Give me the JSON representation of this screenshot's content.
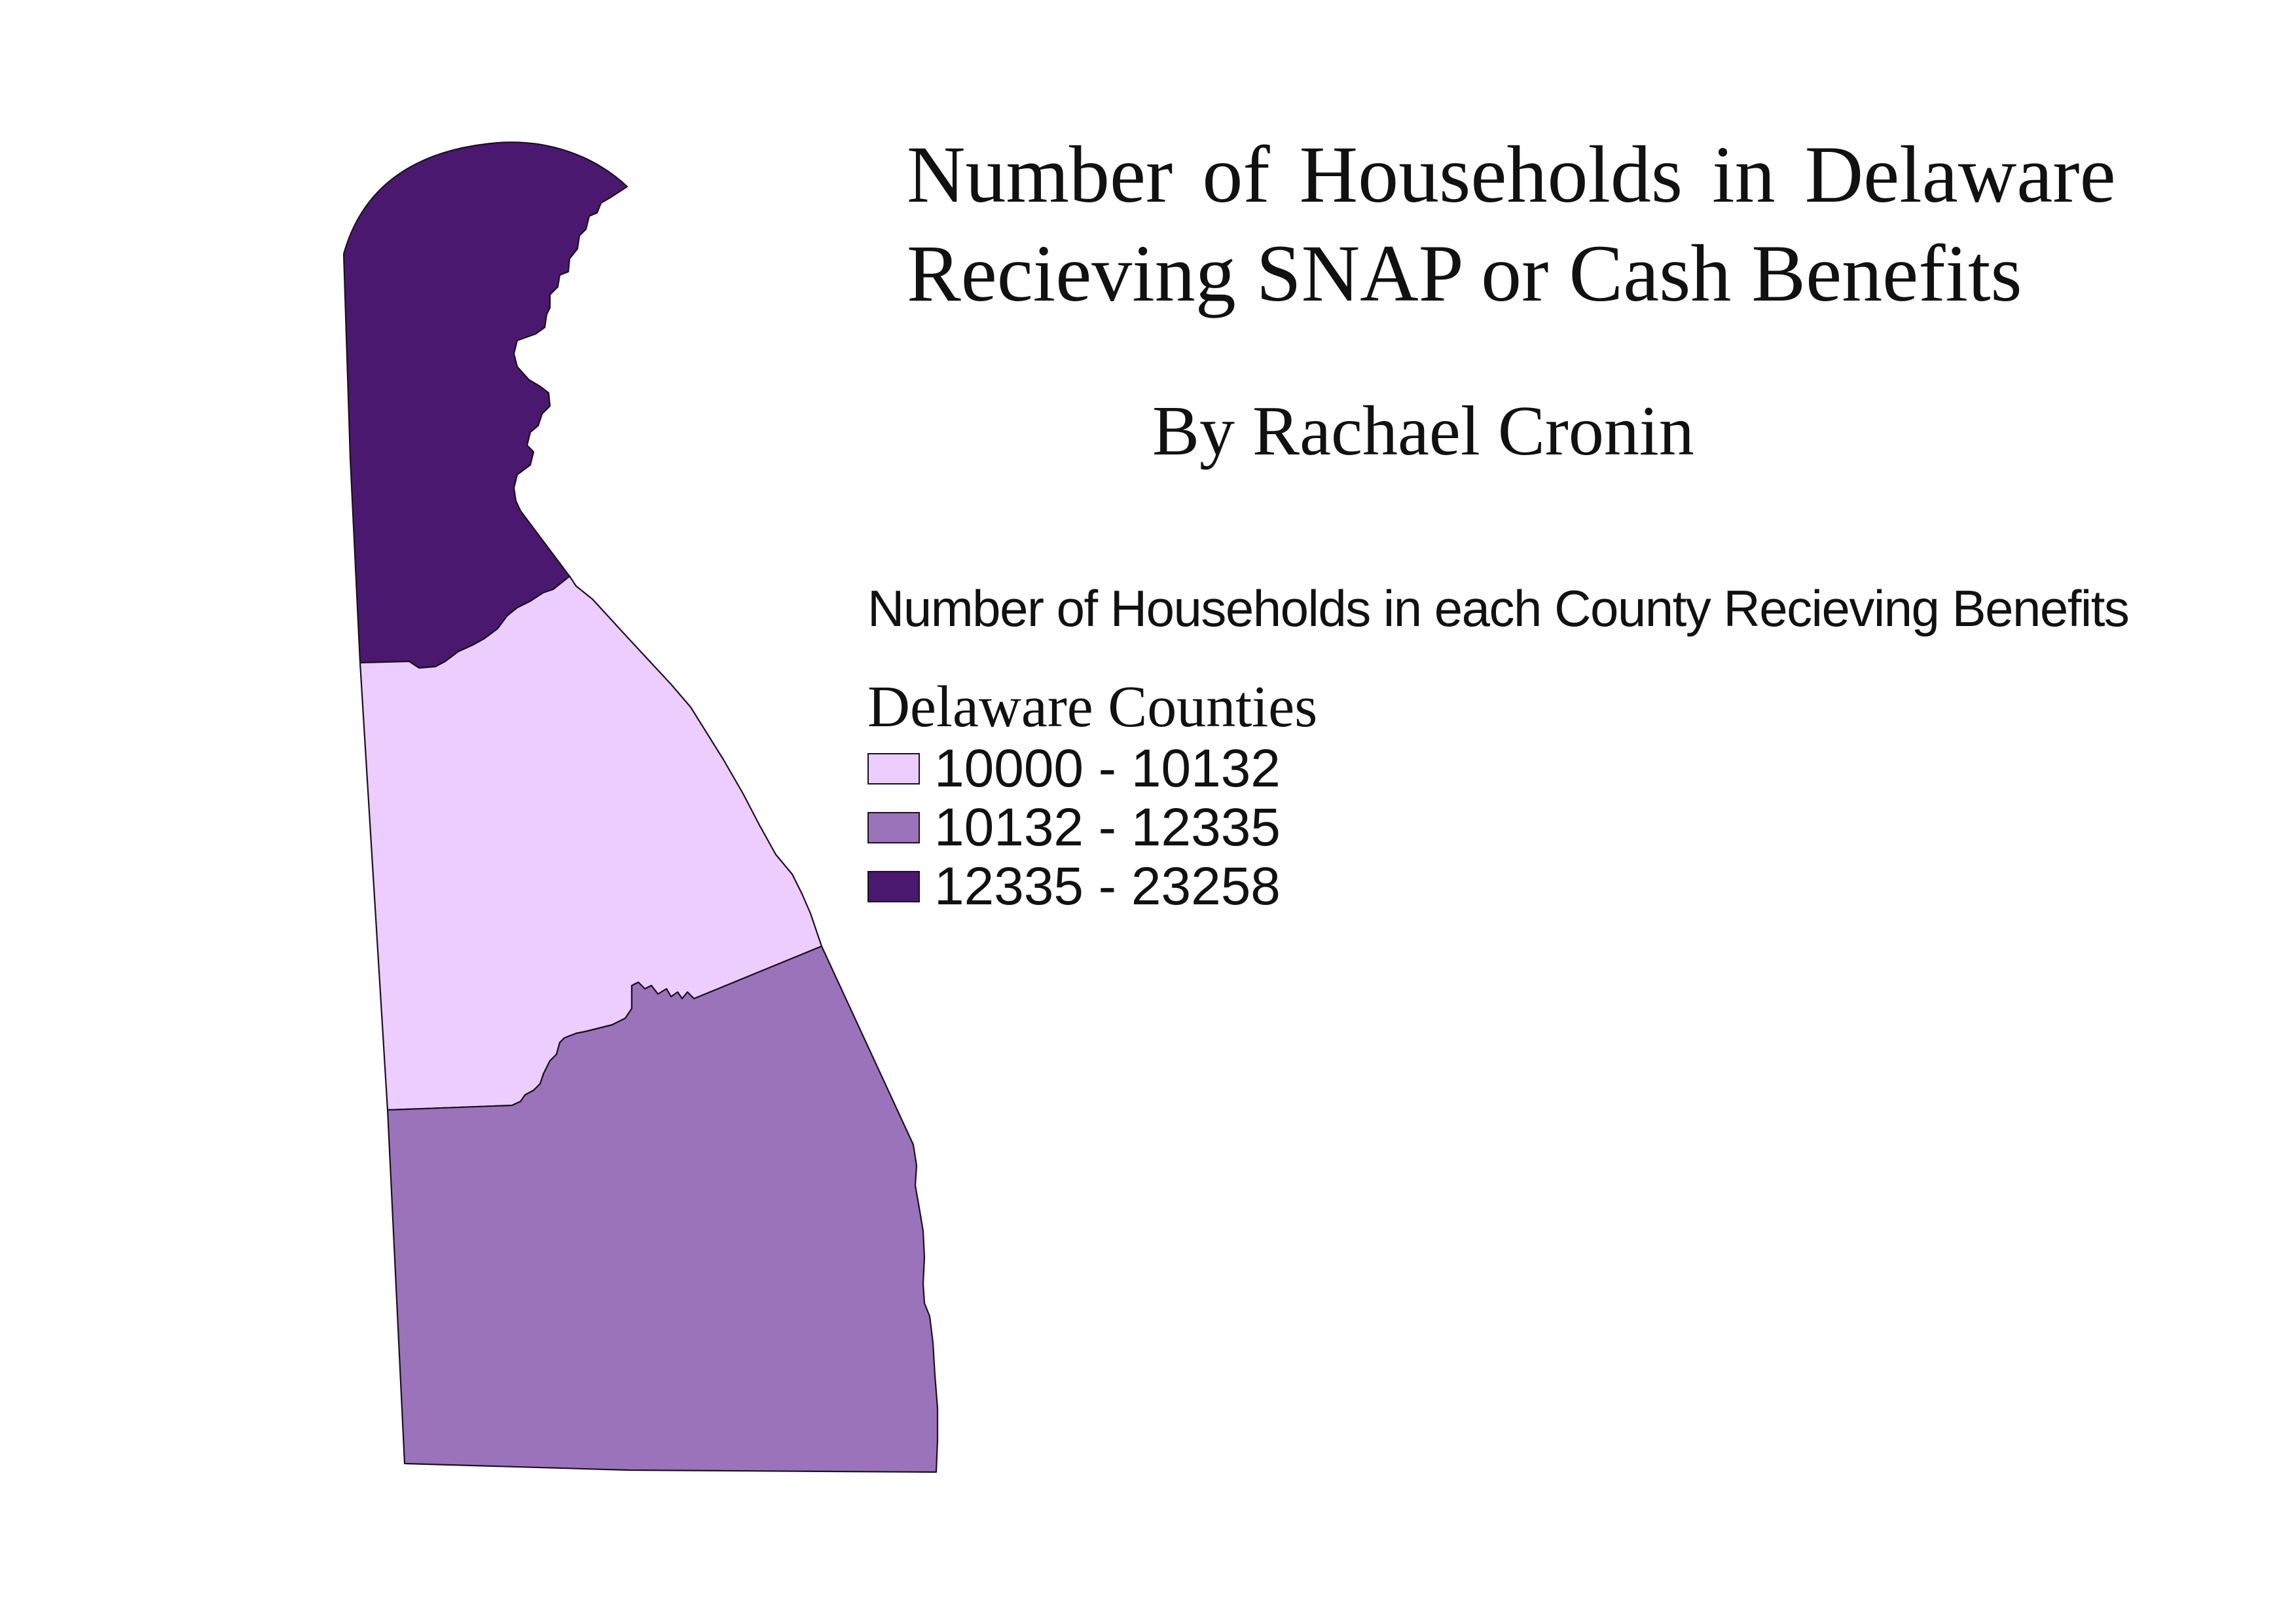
{
  "title": {
    "line1": "Number of Households in Delaware",
    "line2": "Recieving SNAP or Cash Benefits"
  },
  "byline": "By Rachael Cronin",
  "legend": {
    "heading": "Number of Households in each County Recieving Benefits",
    "group_title": "Delaware Counties",
    "classes": [
      {
        "label": "10000 - 10132",
        "color": "#eccdfe"
      },
      {
        "label": "10132 - 12335",
        "color": "#9b73bb"
      },
      {
        "label": "12335 - 23258",
        "color": "#4b1870"
      }
    ]
  },
  "counties": [
    {
      "class_index": 2
    },
    {
      "class_index": 0
    },
    {
      "class_index": 1
    }
  ]
}
